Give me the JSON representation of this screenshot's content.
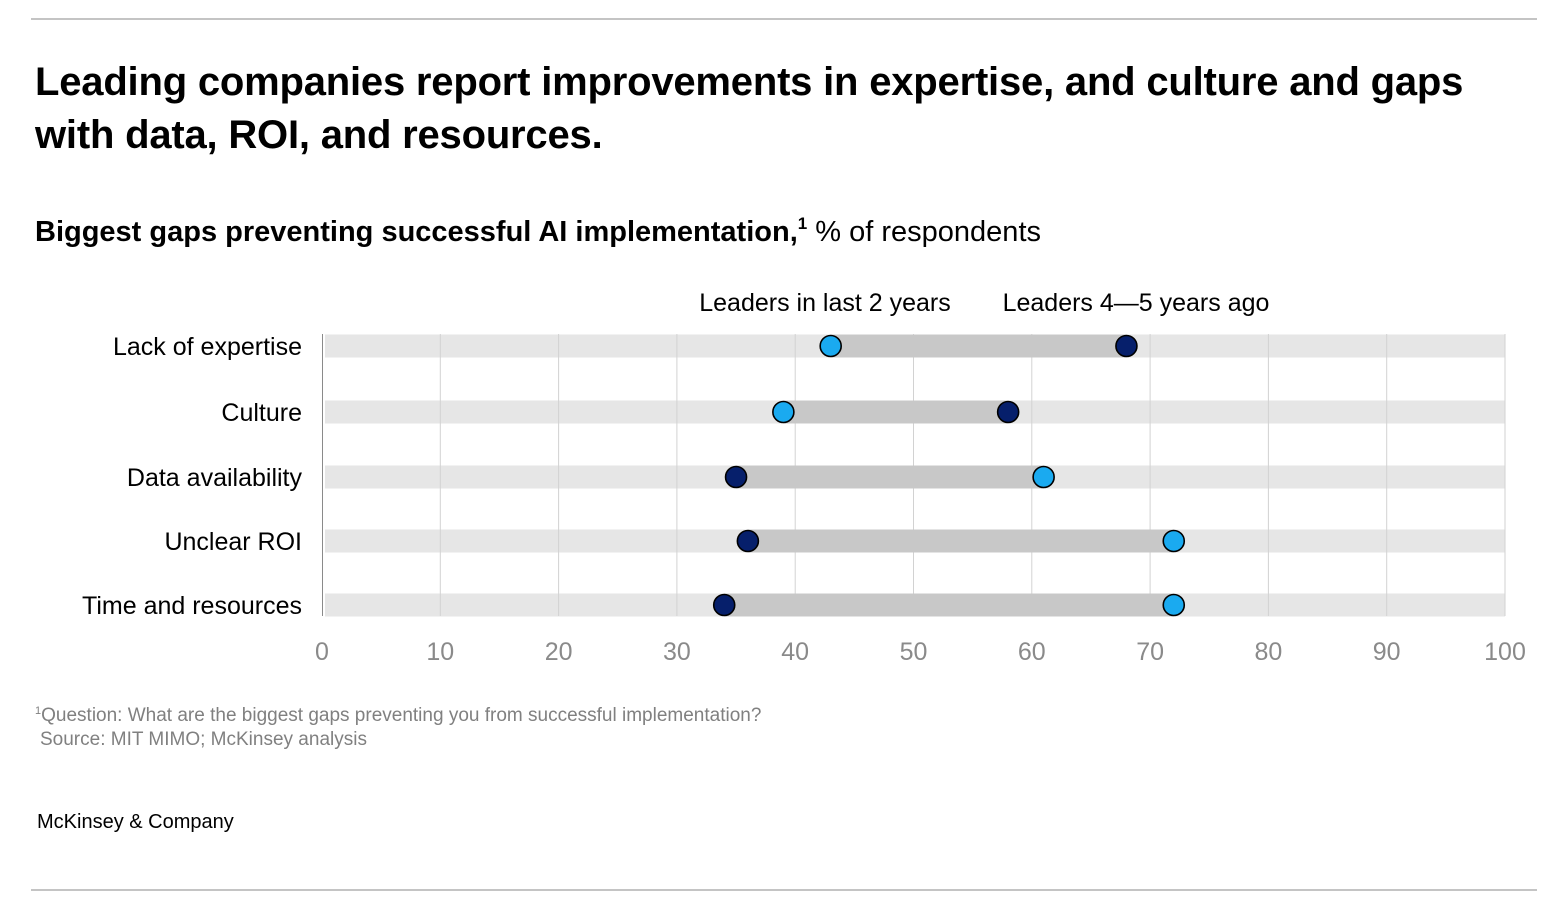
{
  "headline": "Leading companies report improvements in expertise, and culture and gaps with data, ROI, and resources.",
  "subtitle": {
    "bold": "Biggest gaps preventing successful AI implementation,",
    "footnote_mark": "1",
    "unit": "% of respondents"
  },
  "chart_data": {
    "type": "dumbbell",
    "categories": [
      "Lack of expertise",
      "Culture",
      "Data availability",
      "Unclear ROI",
      "Time and resources"
    ],
    "series": [
      {
        "name": "Leaders in last 2 years",
        "color": "#1aaaf0",
        "values": [
          43,
          39,
          61,
          72,
          72
        ]
      },
      {
        "name": "Leaders 4—5 years ago",
        "color": "#061f6b",
        "values": [
          68,
          58,
          35,
          36,
          34
        ]
      }
    ],
    "x_ticks": [
      "0",
      "10",
      "20",
      "30",
      "40",
      "50",
      "60",
      "70",
      "80",
      "90",
      "100"
    ],
    "xlim": [
      0,
      100
    ],
    "grid": true,
    "legend_position": "top, labels above first row"
  },
  "footnotes": {
    "mark": "1",
    "question": "Question: What are the biggest gaps preventing you from successful implementation?",
    "source": "Source: MIT MIMO; McKinsey analysis"
  },
  "brand": "McKinsey & Company"
}
